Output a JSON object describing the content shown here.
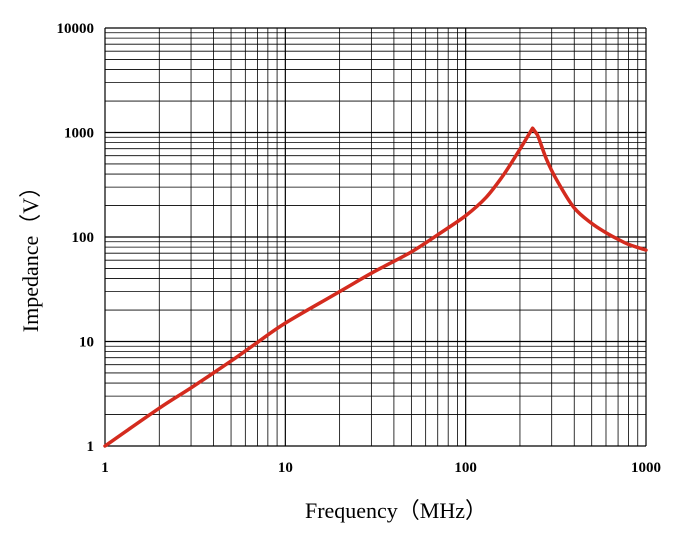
{
  "chart_data": {
    "type": "line",
    "xscale": "log",
    "yscale": "log",
    "xlim": [
      1,
      1000
    ],
    "ylim": [
      1,
      10000
    ],
    "grid": true,
    "xlabel": "Frequency（MHz）",
    "ylabel": "Impedance（V）",
    "x_ticks": [
      "1",
      "10",
      "100",
      "1000"
    ],
    "y_ticks": [
      "1",
      "10",
      "100",
      "1000",
      "10000"
    ],
    "series": [
      {
        "color": "#d42b1e",
        "x": [
          1,
          2,
          3,
          5,
          7,
          10,
          20,
          30,
          50,
          70,
          100,
          130,
          160,
          190,
          215,
          235,
          250,
          280,
          320,
          400,
          500,
          600,
          700,
          800,
          1000
        ],
        "y": [
          1,
          2.3,
          3.6,
          6.5,
          9.8,
          15,
          30,
          45,
          72,
          105,
          160,
          240,
          380,
          600,
          850,
          1100,
          950,
          560,
          350,
          190,
          135,
          110,
          95,
          85,
          75
        ]
      }
    ]
  },
  "colors": {
    "grid": "#000000",
    "series": "#d42b1e",
    "background": "#ffffff"
  }
}
